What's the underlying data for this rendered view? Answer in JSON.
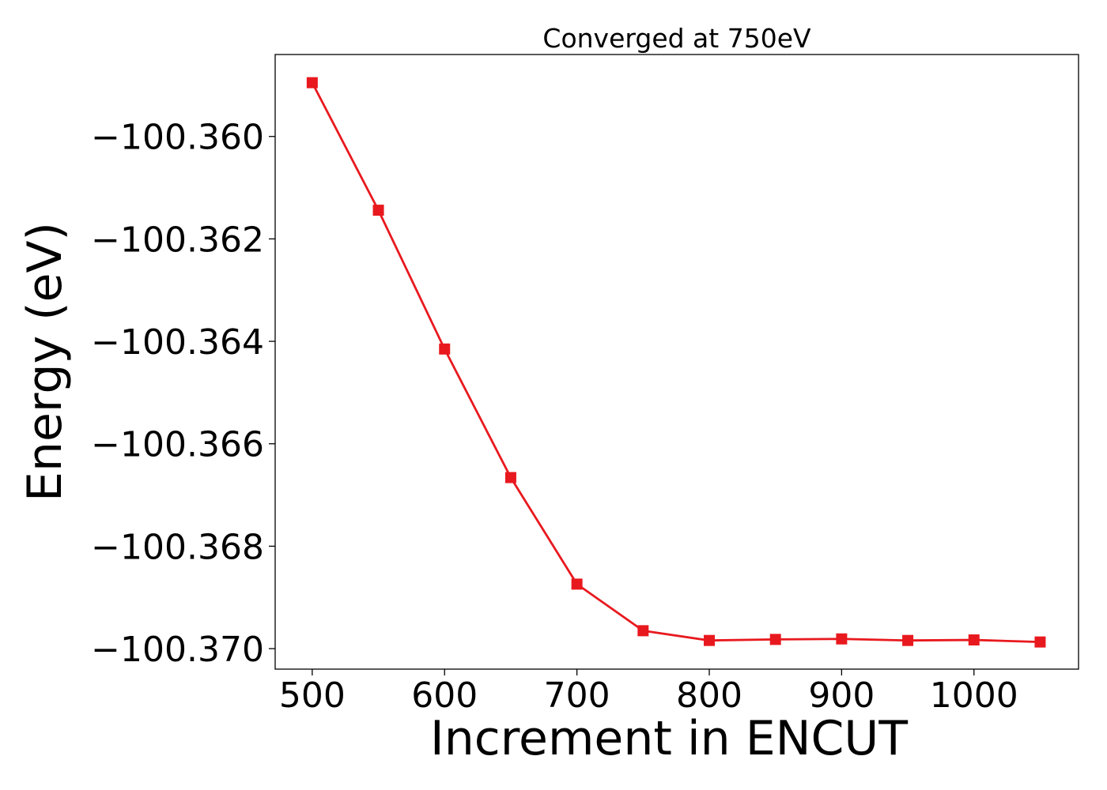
{
  "chart_data": {
    "type": "line",
    "title": "Converged at 750eV",
    "xlabel": "Increment in ENCUT",
    "ylabel": "Energy (eV)",
    "xlim": [
      472,
      1079
    ],
    "ylim": [
      -100.3704,
      -100.3584
    ],
    "x_ticks": [
      500,
      600,
      700,
      800,
      900,
      1000
    ],
    "y_ticks": [
      -100.36,
      -100.362,
      -100.364,
      -100.366,
      -100.368,
      -100.37
    ],
    "y_tick_labels": [
      "−100.360",
      "−100.362",
      "−100.364",
      "−100.366",
      "−100.368",
      "−100.370"
    ],
    "grid": false,
    "marker": "square",
    "series": [
      {
        "color": "#e8191e",
        "points": [
          {
            "x": 500,
            "y": -100.35895
          },
          {
            "x": 550,
            "y": -100.36144
          },
          {
            "x": 600,
            "y": -100.36415
          },
          {
            "x": 650,
            "y": -100.36666
          },
          {
            "x": 700,
            "y": -100.36874
          },
          {
            "x": 750,
            "y": -100.36965
          },
          {
            "x": 800,
            "y": -100.36984
          },
          {
            "x": 850,
            "y": -100.36982
          },
          {
            "x": 900,
            "y": -100.36981
          },
          {
            "x": 950,
            "y": -100.36984
          },
          {
            "x": 1000,
            "y": -100.36983
          },
          {
            "x": 1050,
            "y": -100.36987
          }
        ]
      }
    ]
  }
}
